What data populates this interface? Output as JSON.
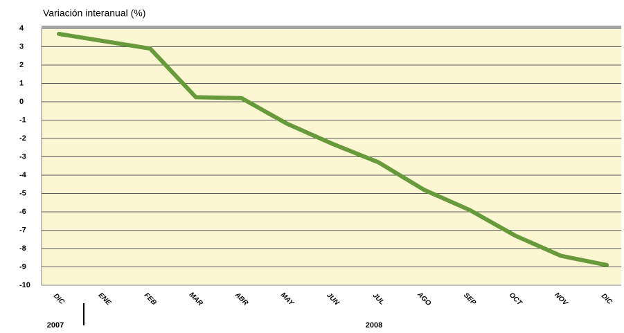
{
  "chart_data": {
    "type": "line",
    "title": "Variación interanual (%)",
    "categories": [
      "DIC",
      "ENE",
      "FEB",
      "MAR",
      "ABR",
      "MAY",
      "JUN",
      "JUL",
      "AGO",
      "SEP",
      "OCT",
      "NOV",
      "DIC"
    ],
    "values": [
      3.7,
      3.3,
      2.9,
      0.25,
      0.2,
      -1.2,
      -2.3,
      -3.3,
      -4.8,
      -5.9,
      -7.3,
      -8.4,
      -8.9
    ],
    "color": "#679a3a",
    "year_labels": [
      "2007",
      "2008"
    ],
    "ylim": [
      -10,
      4
    ],
    "yticks": [
      -10,
      -9,
      -8,
      -7,
      -6,
      -5,
      -4,
      -3,
      -2,
      -1,
      0,
      1,
      2,
      3,
      4
    ],
    "grid": true
  }
}
